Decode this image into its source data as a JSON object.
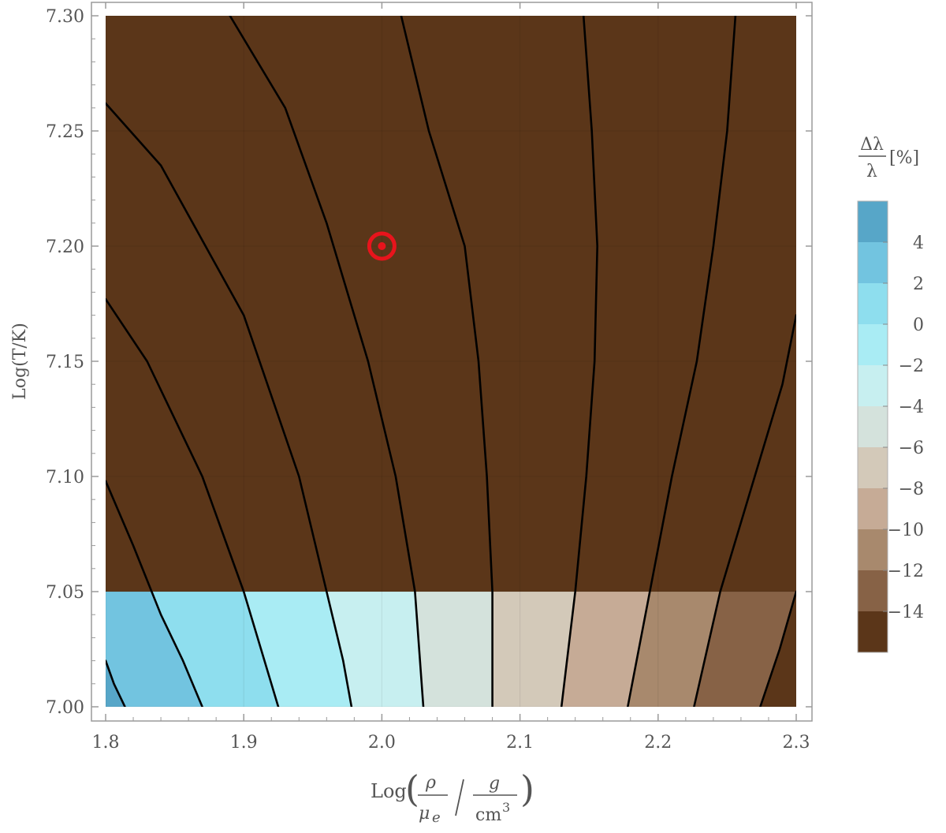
{
  "chart_data": {
    "type": "contour",
    "title": "",
    "xlabel": {
      "prefix": "Log",
      "numerator_symbol": "ρ",
      "denominator_symbol": "μ",
      "denominator_subscript": "e",
      "unit_numerator": "g",
      "unit_denominator": "cm",
      "unit_exponent": "3"
    },
    "ylabel": "Log(T/K)",
    "xlim": [
      1.8,
      2.3
    ],
    "ylim": [
      7.0,
      7.3
    ],
    "xticks": [
      "1.8",
      "1.9",
      "2.0",
      "2.1",
      "2.2",
      "2.3"
    ],
    "yticks": [
      "7.00",
      "7.05",
      "7.10",
      "7.15",
      "7.20",
      "7.25",
      "7.30"
    ],
    "grid": true,
    "marker": {
      "x": 2.0,
      "y": 7.2,
      "symbol": "sun",
      "color": "#e8141c"
    },
    "colorbar": {
      "title_numerator": "Δλ",
      "title_denominator": "λ",
      "title_unit": "[%]",
      "levels": [
        6,
        4,
        2,
        0,
        -2,
        -4,
        -6,
        -8,
        -10,
        -12,
        -14,
        -16
      ],
      "tick_labels": [
        "4",
        "2",
        "0",
        "−2",
        "−4",
        "−6",
        "−8",
        "−10",
        "−12",
        "−14"
      ],
      "colors": [
        "#57a6c8",
        "#72c4e0",
        "#8edeee",
        "#a9ecf4",
        "#c7eff0",
        "#d4e2dc",
        "#d3c9b9",
        "#c6ab96",
        "#a8896d",
        "#876246",
        "#5b3619"
      ]
    },
    "bands": [
      {
        "range": [
          2,
          4
        ],
        "color": "#72c4e0"
      },
      {
        "range": [
          0,
          2
        ],
        "color": "#8edeee"
      },
      {
        "range": [
          -2,
          0
        ],
        "color": "#a9ecf4"
      },
      {
        "range": [
          -4,
          -2
        ],
        "color": "#c7eff0"
      },
      {
        "range": [
          -6,
          -4
        ],
        "color": "#d4e2dc"
      },
      {
        "range": [
          -8,
          -6
        ],
        "color": "#d3c9b9"
      },
      {
        "range": [
          -10,
          -8
        ],
        "color": "#c6ab96"
      },
      {
        "range": [
          -12,
          -10
        ],
        "color": "#a8896d"
      },
      {
        "range": [
          -14,
          -12
        ],
        "color": "#876246"
      },
      {
        "range": [
          -16,
          -14
        ],
        "color": "#5b3619"
      }
    ],
    "contours": [
      {
        "level": 4,
        "points": [
          [
            1.8,
            7.02
          ],
          [
            1.806,
            7.01
          ],
          [
            1.814,
            7.0
          ]
        ]
      },
      {
        "level": 2,
        "points": [
          [
            1.8,
            7.098
          ],
          [
            1.82,
            7.07
          ],
          [
            1.84,
            7.04
          ],
          [
            1.856,
            7.02
          ],
          [
            1.87,
            7.0
          ]
        ]
      },
      {
        "level": 0,
        "points": [
          [
            1.8,
            7.177
          ],
          [
            1.83,
            7.15
          ],
          [
            1.87,
            7.1
          ],
          [
            1.9,
            7.05
          ],
          [
            1.915,
            7.02
          ],
          [
            1.925,
            7.0
          ]
        ]
      },
      {
        "level": -2,
        "points": [
          [
            1.8,
            7.262
          ],
          [
            1.84,
            7.235
          ],
          [
            1.9,
            7.17
          ],
          [
            1.94,
            7.1
          ],
          [
            1.96,
            7.05
          ],
          [
            1.972,
            7.02
          ],
          [
            1.978,
            7.0
          ]
        ]
      },
      {
        "level": -4,
        "points": [
          [
            1.89,
            7.3
          ],
          [
            1.93,
            7.26
          ],
          [
            1.96,
            7.21
          ],
          [
            1.99,
            7.15
          ],
          [
            2.01,
            7.1
          ],
          [
            2.024,
            7.05
          ],
          [
            2.03,
            7.0
          ]
        ]
      },
      {
        "level": -6,
        "points": [
          [
            2.014,
            7.3
          ],
          [
            2.034,
            7.25
          ],
          [
            2.06,
            7.2
          ],
          [
            2.07,
            7.15
          ],
          [
            2.076,
            7.1
          ],
          [
            2.08,
            7.05
          ],
          [
            2.08,
            7.0
          ]
        ]
      },
      {
        "level": -8,
        "points": [
          [
            2.146,
            7.3
          ],
          [
            2.152,
            7.25
          ],
          [
            2.156,
            7.2
          ],
          [
            2.154,
            7.15
          ],
          [
            2.148,
            7.1
          ],
          [
            2.14,
            7.05
          ],
          [
            2.13,
            7.0
          ]
        ]
      },
      {
        "level": -10,
        "points": [
          [
            2.256,
            7.3
          ],
          [
            2.25,
            7.25
          ],
          [
            2.24,
            7.2
          ],
          [
            2.228,
            7.15
          ],
          [
            2.21,
            7.1
          ],
          [
            2.194,
            7.05
          ],
          [
            2.178,
            7.0
          ]
        ]
      },
      {
        "level": -12,
        "points": [
          [
            2.3,
            7.17
          ],
          [
            2.29,
            7.14
          ],
          [
            2.27,
            7.1
          ],
          [
            2.245,
            7.05
          ],
          [
            2.226,
            7.0
          ]
        ]
      },
      {
        "level": -14,
        "points": [
          [
            2.3,
            7.05
          ],
          [
            2.288,
            7.025
          ],
          [
            2.274,
            7.0
          ]
        ]
      }
    ]
  }
}
